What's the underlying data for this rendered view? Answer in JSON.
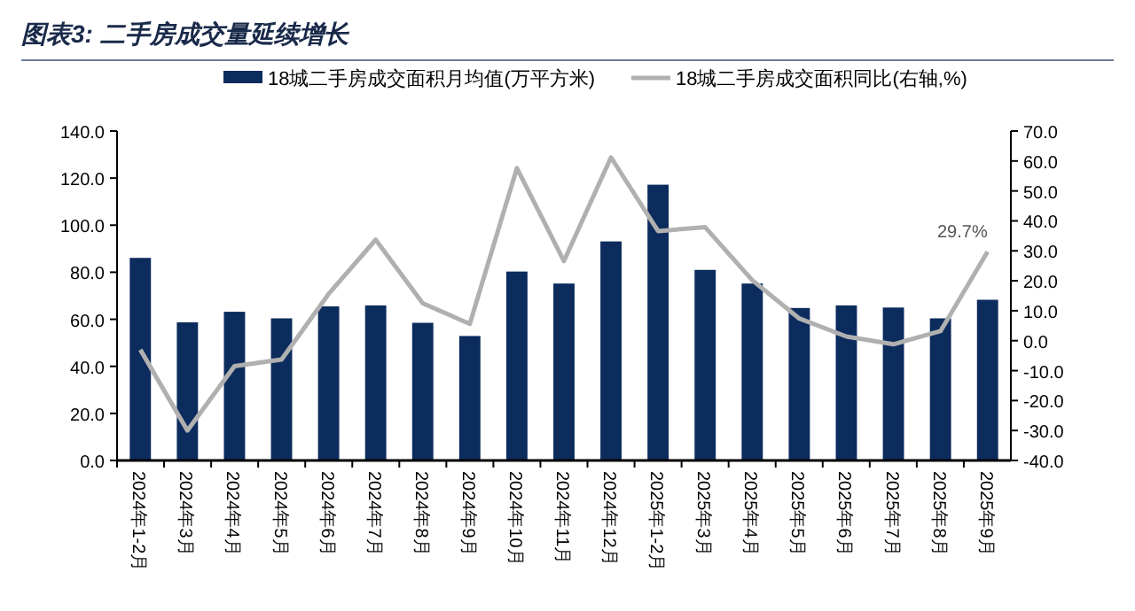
{
  "chart_data": {
    "type": "bar",
    "title": "图表3: 二手房成交量延续增长",
    "categories": [
      "2024年1-2月",
      "2024年3月",
      "2024年4月",
      "2024年5月",
      "2024年6月",
      "2024年7月",
      "2024年8月",
      "2024年9月",
      "2024年10月",
      "2024年11月",
      "2024年12月",
      "2025年1-2月",
      "2025年3月",
      "2025年4月",
      "2025年5月",
      "2025年6月",
      "2025年7月",
      "2025年8月",
      "2025年9月"
    ],
    "series": [
      {
        "name": "18城二手房成交面积月均值(万平方米)",
        "color": "#0c2c5e",
        "values": [
          86.1,
          58.7,
          63.2,
          60.4,
          65.5,
          65.9,
          58.5,
          52.9,
          80.3,
          75.2,
          93.1,
          117.2,
          81.0,
          75.2,
          64.8,
          65.9,
          65.0,
          60.4,
          68.3
        ]
      },
      {
        "name": "18城二手房成交面积同比(右轴,%)",
        "type": "line",
        "axis": "y2",
        "color": "#b0b0b0",
        "values": [
          -3.0,
          -30.0,
          -8.5,
          -6.3,
          15.6,
          33.7,
          12.5,
          5.6,
          57.6,
          26.6,
          61.2,
          36.6,
          37.9,
          20.2,
          7.4,
          1.4,
          -1.2,
          3.2,
          29.7
        ],
        "value_labels": [
          null,
          null,
          null,
          null,
          null,
          null,
          null,
          null,
          null,
          null,
          null,
          null,
          null,
          null,
          null,
          null,
          null,
          null,
          "29.7%"
        ]
      }
    ],
    "ylim": [
      0,
      140
    ],
    "yticks": [
      {
        "value": 0,
        "label": "0.0"
      },
      {
        "value": 20,
        "label": "20.0"
      },
      {
        "value": 40,
        "label": "40.0"
      },
      {
        "value": 60,
        "label": "60.0"
      },
      {
        "value": 80,
        "label": "80.0"
      },
      {
        "value": 100,
        "label": "100.0"
      },
      {
        "value": 120,
        "label": "120.0"
      },
      {
        "value": 140,
        "label": "140.0"
      }
    ],
    "y2lim": [
      -40,
      70
    ],
    "y2ticks": [
      {
        "value": -40,
        "label": "-40.0"
      },
      {
        "value": -30,
        "label": "-30.0"
      },
      {
        "value": -20,
        "label": "-20.0"
      },
      {
        "value": -10,
        "label": "-10.0"
      },
      {
        "value": 0,
        "label": "0.0"
      },
      {
        "value": 10,
        "label": "10.0"
      },
      {
        "value": 20,
        "label": "20.0"
      },
      {
        "value": 30,
        "label": "30.0"
      },
      {
        "value": 40,
        "label": "40.0"
      },
      {
        "value": 50,
        "label": "50.0"
      },
      {
        "value": 60,
        "label": "60.0"
      },
      {
        "value": 70,
        "label": "70.0"
      }
    ],
    "legend": "top",
    "grid": false
  }
}
